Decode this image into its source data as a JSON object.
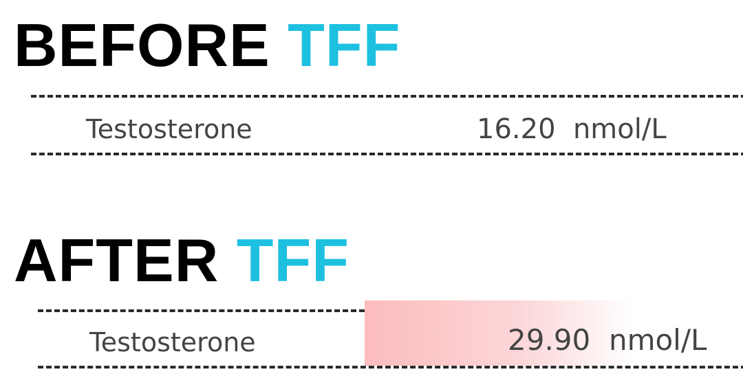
{
  "before": {
    "heading_word": "BEFORE",
    "heading_accent": "TFF",
    "row_label": "Testosterone",
    "value": "16.20",
    "unit": "nmol/L"
  },
  "after": {
    "heading_word": "AFTER",
    "heading_accent": "TFF",
    "row_label": "Testosterone",
    "value": "29.90",
    "unit": "nmol/L"
  },
  "colors": {
    "accent": "#1ec0e0",
    "highlight": "#fbbcbc"
  }
}
